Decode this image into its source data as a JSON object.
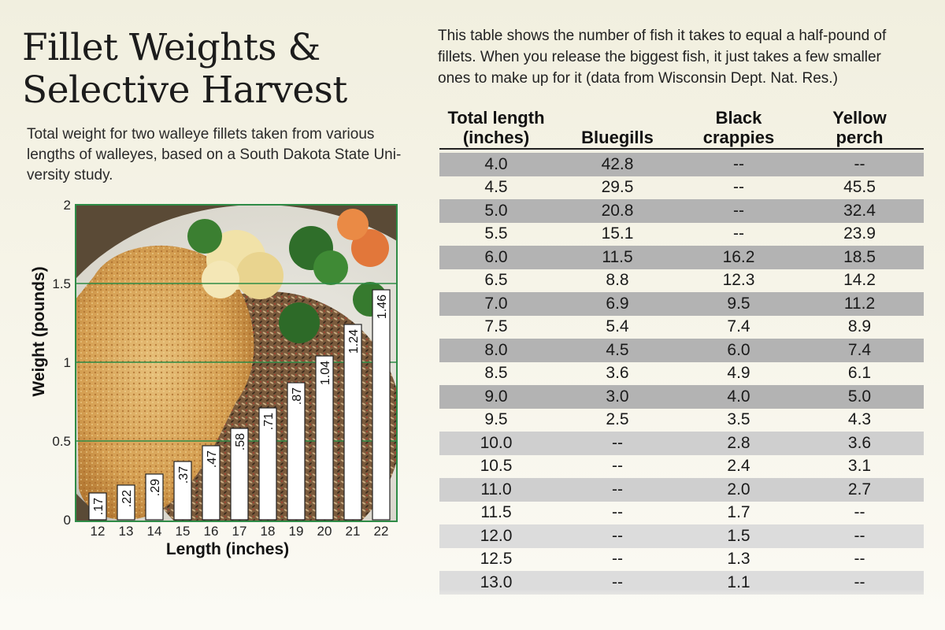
{
  "title_lines": [
    "Fillet Weights &",
    "Selective Harvest"
  ],
  "subtitle_lines": [
    "Total weight for two walleye fillets taken from various",
    "lengths of walleyes, based on a South Dakota State Uni-",
    "versity study."
  ],
  "intro_lines": [
    "This table shows the number of fish it takes to equal a half-pound of",
    "fillets. When you release the biggest fish, it just takes a few smaller",
    "ones to make up for it (data from Wisconsin Dept. Nat. Res.)"
  ],
  "chart_data": {
    "type": "bar",
    "title": "Fillet Weights & Selective Harvest",
    "xlabel": "Length (inches)",
    "ylabel": "Weight (pounds)",
    "categories": [
      "12",
      "13",
      "14",
      "15",
      "16",
      "17",
      "18",
      "19",
      "20",
      "21",
      "22"
    ],
    "values": [
      0.17,
      0.22,
      0.29,
      0.37,
      0.47,
      0.58,
      0.71,
      0.87,
      1.04,
      1.24,
      1.46
    ],
    "data_labels": [
      ".17",
      ".22",
      ".29",
      ".37",
      ".47",
      ".58",
      ".71",
      ".87",
      "1.04",
      "1.24",
      "1.46"
    ],
    "yticks": [
      "0",
      "0.5",
      "1",
      "1.5",
      "2"
    ],
    "ylim": [
      0,
      2
    ],
    "grid": true,
    "background": "photo of breaded walleye fillet with vegetables"
  },
  "table": {
    "headers": [
      [
        "Total length",
        "(inches)"
      ],
      [
        "",
        "Bluegills"
      ],
      [
        "Black",
        "crappies"
      ],
      [
        "Yellow",
        "perch"
      ]
    ],
    "rows": [
      [
        "4.0",
        "42.8",
        "--",
        "--"
      ],
      [
        "4.5",
        "29.5",
        "--",
        "45.5"
      ],
      [
        "5.0",
        "20.8",
        "--",
        "32.4"
      ],
      [
        "5.5",
        "15.1",
        "--",
        "23.9"
      ],
      [
        "6.0",
        "11.5",
        "16.2",
        "18.5"
      ],
      [
        "6.5",
        "8.8",
        "12.3",
        "14.2"
      ],
      [
        "7.0",
        "6.9",
        "9.5",
        "11.2"
      ],
      [
        "7.5",
        "5.4",
        "7.4",
        "8.9"
      ],
      [
        "8.0",
        "4.5",
        "6.0",
        "7.4"
      ],
      [
        "8.5",
        "3.6",
        "4.9",
        "6.1"
      ],
      [
        "9.0",
        "3.0",
        "4.0",
        "5.0"
      ],
      [
        "9.5",
        "2.5",
        "3.5",
        "4.3"
      ],
      [
        "10.0",
        "--",
        "2.8",
        "3.6"
      ],
      [
        "10.5",
        "--",
        "2.4",
        "3.1"
      ],
      [
        "11.0",
        "--",
        "2.0",
        "2.7"
      ],
      [
        "11.5",
        "--",
        "1.7",
        "--"
      ],
      [
        "12.0",
        "--",
        "1.5",
        "--"
      ],
      [
        "12.5",
        "--",
        "1.3",
        "--"
      ],
      [
        "13.0",
        "--",
        "1.1",
        "--"
      ]
    ]
  },
  "colors": {
    "grid": "#2e8b46",
    "bar": "#ffffff",
    "shade_row": "#b3b3b3"
  }
}
